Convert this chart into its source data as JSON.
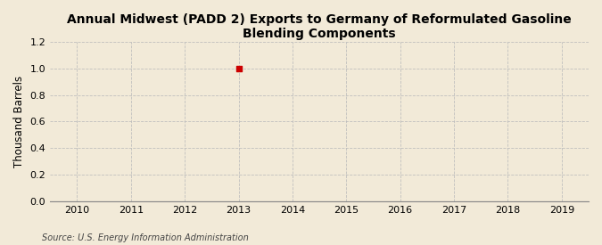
{
  "title": "Annual Midwest (PADD 2) Exports to Germany of Reformulated Gasoline Blending Components",
  "ylabel": "Thousand Barrels",
  "source": "Source: U.S. Energy Information Administration",
  "xlim": [
    2009.5,
    2019.5
  ],
  "ylim": [
    0.0,
    1.2
  ],
  "yticks": [
    0.0,
    0.2,
    0.4,
    0.6,
    0.8,
    1.0,
    1.2
  ],
  "xticks": [
    2010,
    2011,
    2012,
    2013,
    2014,
    2015,
    2016,
    2017,
    2018,
    2019
  ],
  "data_x": [
    2013
  ],
  "data_y": [
    1.0
  ],
  "point_color": "#cc0000",
  "point_marker": "s",
  "point_size": 18,
  "bg_color": "#f2ead8",
  "plot_bg_color": "#f2ead8",
  "grid_color": "#bbbbbb",
  "grid_style": "--",
  "grid_alpha": 0.9,
  "title_fontsize": 10,
  "axis_label_fontsize": 8.5,
  "tick_fontsize": 8,
  "source_fontsize": 7
}
